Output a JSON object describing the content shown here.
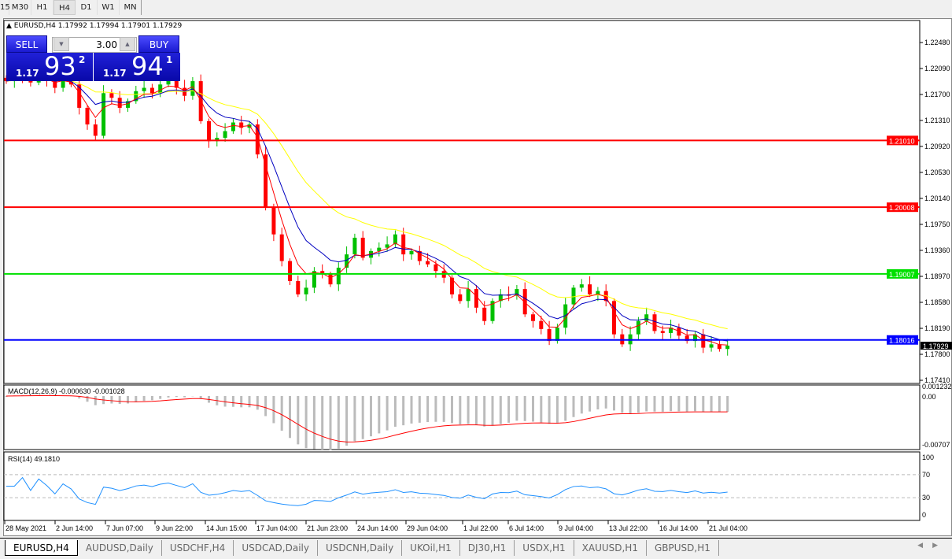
{
  "timeframes": [
    "15",
    "M30",
    "H1",
    "H4",
    "D1",
    "W1",
    "MN"
  ],
  "active_timeframe": "H4",
  "chart": {
    "title": "EURUSD,H4  1.17992 1.17994 1.17901 1.17929",
    "trade_panel": {
      "sell_label": "SELL",
      "buy_label": "BUY",
      "lot": "3.00",
      "sell_prefix": "1.17",
      "sell_big": "93",
      "sell_sup": "2",
      "buy_prefix": "1.17",
      "buy_big": "94",
      "buy_sup": "1"
    },
    "price_ticks": [
      "1.22480",
      "1.22090",
      "1.21700",
      "1.21310",
      "1.20920",
      "1.20530",
      "1.20140",
      "1.19750",
      "1.19360",
      "1.18970",
      "1.18580",
      "1.18190",
      "1.17800",
      "1.17410"
    ],
    "hlines": [
      {
        "price": 1.2101,
        "label": "1.21010",
        "color": "#ff0000"
      },
      {
        "price": 1.20008,
        "label": "1.20008",
        "color": "#ff0000"
      },
      {
        "price": 1.19007,
        "label": "1.19007",
        "color": "#00e000"
      },
      {
        "price": 1.18016,
        "label": "1.18016",
        "color": "#0000ff"
      }
    ],
    "current_price": "1.17929",
    "colors": {
      "bull": "#00c000",
      "bear": "#ff0000",
      "ma_fast": "#ff0000",
      "ma_mid": "#0000c0",
      "ma_slow": "#ffff00"
    },
    "closes": [
      1.219,
      1.22,
      1.2195,
      1.2188,
      1.2198,
      1.2192,
      1.218,
      1.2195,
      1.2185,
      1.215,
      1.2125,
      1.2108,
      1.2172,
      1.2165,
      1.215,
      1.216,
      1.2175,
      1.218,
      1.2172,
      1.2185,
      1.2192,
      1.218,
      1.2168,
      1.219,
      1.213,
      1.21,
      1.2105,
      1.2115,
      1.2128,
      1.212,
      1.2125,
      1.208,
      1.2,
      1.196,
      1.192,
      1.189,
      1.187,
      1.188,
      1.1905,
      1.19,
      1.1885,
      1.191,
      1.193,
      1.1955,
      1.1925,
      1.1935,
      1.194,
      1.1945,
      1.196,
      1.193,
      1.1935,
      1.192,
      1.1915,
      1.1905,
      1.1895,
      1.187,
      1.186,
      1.1878,
      1.185,
      1.183,
      1.186,
      1.187,
      1.1868,
      1.1878,
      1.184,
      1.183,
      1.1818,
      1.18,
      1.182,
      1.1855,
      1.188,
      1.1885,
      1.187,
      1.1875,
      1.186,
      1.181,
      1.1795,
      1.181,
      1.183,
      1.184,
      1.1815,
      1.1812,
      1.182,
      1.1808,
      1.18,
      1.181,
      1.179,
      1.1795,
      1.1788,
      1.1793
    ],
    "macd": {
      "label": "MACD(12,26,9) -0.000630 -0.001028",
      "ticks": [
        "0.001232",
        "0.00",
        "-0.00707"
      ]
    },
    "rsi": {
      "label": "RSI(14) 49.1810",
      "ticks": [
        "100",
        "70",
        "30",
        "0"
      ],
      "color": "#1e90ff"
    },
    "dates": [
      "28 May 2021",
      "2 Jun 14:00",
      "7 Jun 07:00",
      "9 Jun 22:00",
      "14 Jun 15:00",
      "17 Jun 04:00",
      "21 Jun 23:00",
      "24 Jun 14:00",
      "29 Jun 04:00",
      "1 Jul 22:00",
      "6 Jul 14:00",
      "9 Jul 04:00",
      "13 Jul 22:00",
      "16 Jul 14:00",
      "21 Jul 04:00"
    ]
  },
  "tabs": [
    "EURUSD,H4",
    "AUDUSD,Daily",
    "USDCHF,H4",
    "USDCAD,Daily",
    "USDCNH,Daily",
    "UKOil,H1",
    "DJ30,H1",
    "USDX,H1",
    "XAUUSD,H1",
    "GBPUSD,H1"
  ]
}
